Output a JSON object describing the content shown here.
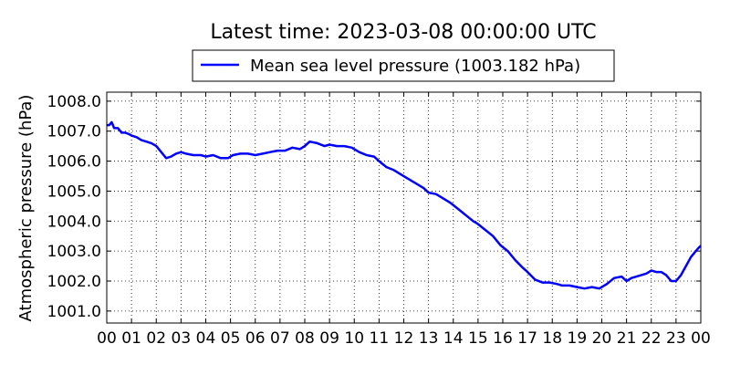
{
  "chart_data": {
    "type": "line",
    "title": "Latest time: 2023-03-08 00:00:00 UTC",
    "xlabel": "",
    "ylabel": "Atmospheric pressure (hPa)",
    "xlim": [
      0,
      24
    ],
    "ylim": [
      1000.6,
      1008.3
    ],
    "xticks": [
      0,
      1,
      2,
      3,
      4,
      5,
      6,
      7,
      8,
      9,
      10,
      11,
      12,
      13,
      14,
      15,
      16,
      17,
      18,
      19,
      20,
      21,
      22,
      23,
      24
    ],
    "xtick_labels": [
      "00",
      "01",
      "02",
      "03",
      "04",
      "05",
      "06",
      "07",
      "08",
      "09",
      "10",
      "11",
      "12",
      "13",
      "14",
      "15",
      "16",
      "17",
      "18",
      "19",
      "20",
      "21",
      "22",
      "23",
      "00"
    ],
    "yticks": [
      1001.0,
      1002.0,
      1003.0,
      1004.0,
      1005.0,
      1006.0,
      1007.0,
      1008.0
    ],
    "ytick_labels": [
      "1001.0",
      "1002.0",
      "1003.0",
      "1004.0",
      "1005.0",
      "1006.0",
      "1007.0",
      "1008.0"
    ],
    "grid": true,
    "legend_position": "top-center",
    "series": [
      {
        "name": "Mean sea level pressure (1003.182 hPa)",
        "color": "#0000ff",
        "x": [
          0,
          0.1,
          0.2,
          0.3,
          0.45,
          0.6,
          0.75,
          0.9,
          1.0,
          1.2,
          1.4,
          1.6,
          1.8,
          2.0,
          2.2,
          2.4,
          2.6,
          2.8,
          3.0,
          3.2,
          3.5,
          3.8,
          4.0,
          4.3,
          4.6,
          4.9,
          5.1,
          5.4,
          5.7,
          6.0,
          6.3,
          6.6,
          6.9,
          7.2,
          7.5,
          7.8,
          8.0,
          8.2,
          8.5,
          8.8,
          9.0,
          9.3,
          9.6,
          9.9,
          10.2,
          10.5,
          10.8,
          11.0,
          11.3,
          11.6,
          11.9,
          12.2,
          12.5,
          12.8,
          13.0,
          13.3,
          13.6,
          13.9,
          14.2,
          14.5,
          14.8,
          15.0,
          15.3,
          15.6,
          15.9,
          16.2,
          16.5,
          16.8,
          17.0,
          17.3,
          17.6,
          17.9,
          18.2,
          18.4,
          18.7,
          19.0,
          19.3,
          19.6,
          19.9,
          20.2,
          20.5,
          20.8,
          21.0,
          21.2,
          21.4,
          21.6,
          21.8,
          22.0,
          22.2,
          22.4,
          22.6,
          22.8,
          23.0,
          23.2,
          23.4,
          23.6,
          23.8,
          23.9,
          24.0
        ],
        "y": [
          1007.2,
          1007.2,
          1007.3,
          1007.1,
          1007.1,
          1006.95,
          1006.95,
          1006.9,
          1006.85,
          1006.8,
          1006.7,
          1006.65,
          1006.6,
          1006.5,
          1006.3,
          1006.1,
          1006.15,
          1006.25,
          1006.3,
          1006.25,
          1006.2,
          1006.2,
          1006.15,
          1006.2,
          1006.1,
          1006.1,
          1006.2,
          1006.25,
          1006.25,
          1006.2,
          1006.25,
          1006.3,
          1006.35,
          1006.35,
          1006.45,
          1006.4,
          1006.5,
          1006.65,
          1006.6,
          1006.5,
          1006.55,
          1006.5,
          1006.5,
          1006.45,
          1006.3,
          1006.2,
          1006.15,
          1006.0,
          1005.8,
          1005.7,
          1005.55,
          1005.4,
          1005.25,
          1005.1,
          1004.95,
          1004.9,
          1004.75,
          1004.6,
          1004.4,
          1004.2,
          1004.0,
          1003.9,
          1003.7,
          1003.5,
          1003.2,
          1003.0,
          1002.7,
          1002.45,
          1002.3,
          1002.05,
          1001.95,
          1001.95,
          1001.9,
          1001.85,
          1001.85,
          1001.8,
          1001.75,
          1001.8,
          1001.75,
          1001.9,
          1002.1,
          1002.15,
          1002.0,
          1002.1,
          1002.15,
          1002.2,
          1002.25,
          1002.35,
          1002.3,
          1002.3,
          1002.2,
          1002.0,
          1002.0,
          1002.2,
          1002.5,
          1002.8,
          1003.0,
          1003.1,
          1003.182
        ]
      }
    ]
  }
}
